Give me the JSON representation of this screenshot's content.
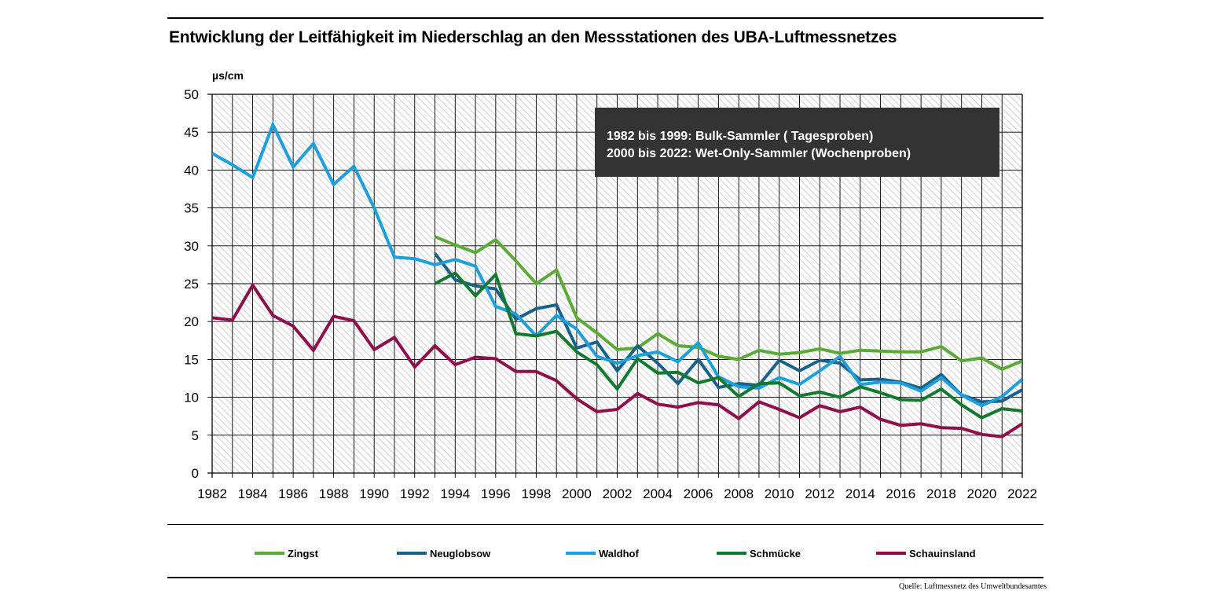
{
  "title": "Entwicklung der Leitfähigkeit im Niederschlag an den Messstationen des UBA-Luftmessnetzes",
  "source": "Quelle: Luftmessnetz des Umweltbundesamtes",
  "note": {
    "line1": "1982 bis 1999: Bulk-Sammler ( Tagesproben)",
    "line2": "2000 bis 2022: Wet-Only-Sammler (Wochenproben)"
  },
  "chart_data": {
    "type": "line",
    "title": "Entwicklung der Leitfähigkeit im Niederschlag an den Messstationen des UBA-Luftmessnetzes",
    "ylabel": "µs/cm",
    "xlabel": "",
    "xlim": [
      1982,
      2022
    ],
    "ylim": [
      0,
      50
    ],
    "grid": true,
    "legend_position": "bottom",
    "x_ticks": [
      "1982",
      "1984",
      "1986",
      "1988",
      "1990",
      "1992",
      "1994",
      "1996",
      "1998",
      "2000",
      "2002",
      "2004",
      "2006",
      "2008",
      "2010",
      "2012",
      "2014",
      "2016",
      "2018",
      "2020",
      "2022"
    ],
    "y_ticks": [
      "0",
      "5",
      "10",
      "15",
      "20",
      "25",
      "30",
      "35",
      "40",
      "45",
      "50"
    ],
    "series": [
      {
        "name": "Zingst",
        "color": "#5aaa37",
        "x_start": 1993,
        "values": [
          31.2,
          30.1,
          29.1,
          30.8,
          28.0,
          25.0,
          26.8,
          20.5,
          18.5,
          16.3,
          16.5,
          18.4,
          16.8,
          16.6,
          15.4,
          15.0,
          16.2,
          15.7,
          15.9,
          16.4,
          15.8,
          16.2,
          16.1,
          16.0,
          16.0,
          16.7,
          14.8,
          15.2,
          13.7,
          14.8
        ]
      },
      {
        "name": "Neuglobsow",
        "color": "#1a6189",
        "x_start": 1993,
        "values": [
          29.0,
          25.5,
          24.7,
          24.3,
          20.3,
          21.7,
          22.2,
          16.5,
          17.3,
          13.5,
          16.8,
          14.5,
          11.8,
          15.0,
          11.3,
          11.8,
          11.6,
          14.9,
          13.5,
          14.9,
          14.5,
          12.3,
          12.4,
          12.0,
          11.2,
          13.0,
          10.3,
          9.4,
          9.5,
          11.0
        ]
      },
      {
        "name": "Waldhof",
        "color": "#1c9fdb",
        "x_start": 1982,
        "values": [
          42.2,
          40.7,
          39.0,
          46.0,
          40.4,
          43.5,
          38.1,
          40.5,
          35.0,
          28.5,
          28.3,
          27.5,
          28.2,
          27.3,
          22.0,
          21.0,
          18.1,
          20.8,
          19.0,
          15.4,
          14.5,
          15.5,
          16.0,
          14.7,
          17.2,
          12.7,
          11.4,
          11.2,
          12.6,
          11.7,
          13.5,
          15.4,
          11.7,
          12.0,
          11.9,
          10.8,
          12.6,
          10.3,
          8.9,
          10.1,
          12.4
        ]
      },
      {
        "name": "Schmücke",
        "color": "#127a2e",
        "x_start": 1993,
        "values": [
          25.0,
          26.4,
          23.4,
          26.2,
          18.4,
          18.1,
          18.7,
          16.0,
          14.3,
          11.1,
          15.1,
          13.2,
          13.3,
          11.9,
          12.6,
          10.1,
          11.8,
          11.9,
          10.2,
          10.7,
          10.0,
          11.4,
          10.6,
          9.7,
          9.6,
          11.1,
          9.0,
          7.3,
          8.5,
          8.2
        ]
      },
      {
        "name": "Schauinsland",
        "color": "#8e0f4b",
        "x_start": 1982,
        "values": [
          20.5,
          20.2,
          24.8,
          20.8,
          19.4,
          16.2,
          20.7,
          20.1,
          16.3,
          17.9,
          14.0,
          16.8,
          14.3,
          15.3,
          15.1,
          13.4,
          13.4,
          12.2,
          9.8,
          8.1,
          8.4,
          10.5,
          9.1,
          8.7,
          9.3,
          9.0,
          7.2,
          9.4,
          8.4,
          7.3,
          8.9,
          8.1,
          8.7,
          7.1,
          6.3,
          6.5,
          6.0,
          5.9,
          5.1,
          4.8,
          6.5
        ]
      }
    ]
  }
}
